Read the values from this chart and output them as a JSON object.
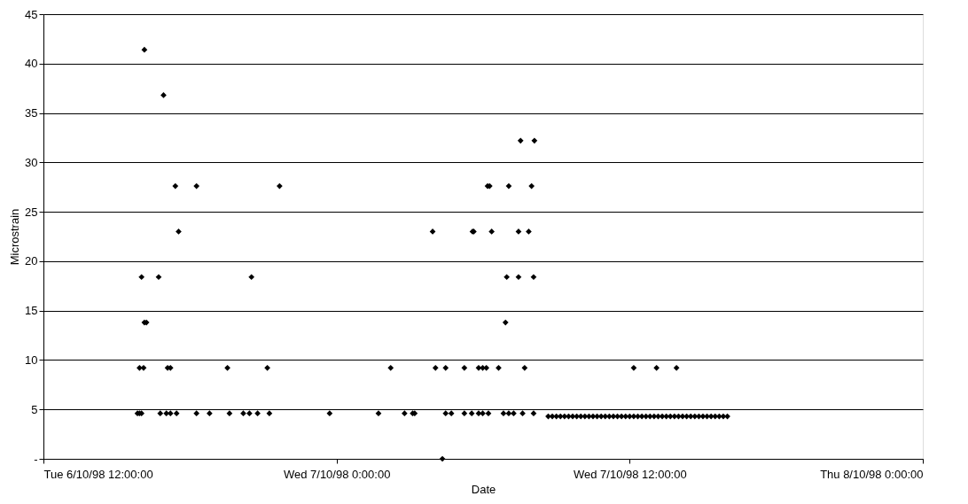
{
  "chart_data": {
    "type": "scatter",
    "xlabel": "Date",
    "ylabel": "Microstrain",
    "x": [
      "1998-10-06T15:51",
      "1998-10-06T15:56",
      "1998-10-06T16:01",
      "1998-10-06T16:47",
      "1998-10-06T17:02",
      "1998-10-06T17:12",
      "1998-10-06T17:27",
      "1998-10-06T18:16",
      "1998-10-06T18:48",
      "1998-10-06T19:37",
      "1998-10-06T20:11",
      "1998-10-06T20:26",
      "1998-10-06T20:46",
      "1998-10-06T21:15",
      "1998-10-06T23:43",
      "1998-10-07T01:43",
      "1998-10-07T02:47",
      "1998-10-07T03:12",
      "1998-10-06T15:56",
      "1998-10-06T16:06",
      "1998-10-06T17:05",
      "1998-10-06T17:12",
      "1998-10-06T19:32",
      "1998-10-06T21:10",
      "1998-10-06T16:08",
      "1998-10-06T16:13",
      "1998-10-06T16:01",
      "1998-10-06T16:43",
      "1998-10-06T20:31",
      "1998-10-06T17:32",
      "1998-10-06T17:24",
      "1998-10-06T18:16",
      "1998-10-06T21:40",
      "1998-10-06T16:55",
      "1998-10-06T16:08",
      "1998-10-07T03:07",
      "1998-10-07T04:28",
      "1998-10-07T04:42",
      "1998-10-07T05:14",
      "1998-10-07T05:32",
      "1998-10-07T05:49",
      "1998-10-07T05:59",
      "1998-10-07T06:13",
      "1998-10-07T06:50",
      "1998-10-07T07:03",
      "1998-10-07T07:15",
      "1998-10-07T07:37",
      "1998-10-07T08:04",
      "1998-10-07T04:20",
      "1998-10-07T02:13",
      "1998-10-07T04:03",
      "1998-10-07T04:28",
      "1998-10-07T05:14",
      "1998-10-07T05:49",
      "1998-10-07T05:59",
      "1998-10-07T06:08",
      "1998-10-07T06:38",
      "1998-10-07T07:42",
      "1998-10-07T06:55",
      "1998-10-07T06:58",
      "1998-10-07T07:27",
      "1998-10-07T08:04",
      "1998-10-07T03:56",
      "1998-10-07T05:34",
      "1998-10-07T05:37",
      "1998-10-07T06:21",
      "1998-10-07T07:27",
      "1998-10-07T07:52",
      "1998-10-07T06:11",
      "1998-10-07T06:16",
      "1998-10-07T07:03",
      "1998-10-07T07:59",
      "1998-10-07T07:32",
      "1998-10-07T08:06",
      "1998-10-07T12:10",
      "1998-10-07T13:06",
      "1998-10-07T13:55",
      "1998-10-07T08:40",
      "1998-10-07T08:50",
      "1998-10-07T09:00",
      "1998-10-07T09:10",
      "1998-10-07T09:20",
      "1998-10-07T09:30",
      "1998-10-07T09:40",
      "1998-10-07T09:50",
      "1998-10-07T10:00",
      "1998-10-07T10:10",
      "1998-10-07T10:20",
      "1998-10-07T10:30",
      "1998-10-07T10:40",
      "1998-10-07T10:50",
      "1998-10-07T11:00",
      "1998-10-07T11:10",
      "1998-10-07T11:20",
      "1998-10-07T11:30",
      "1998-10-07T11:40",
      "1998-10-07T11:50",
      "1998-10-07T12:00",
      "1998-10-07T12:10",
      "1998-10-07T12:20",
      "1998-10-07T12:30",
      "1998-10-07T12:40",
      "1998-10-07T12:50",
      "1998-10-07T13:00",
      "1998-10-07T13:10",
      "1998-10-07T13:20",
      "1998-10-07T13:30",
      "1998-10-07T13:40",
      "1998-10-07T13:50",
      "1998-10-07T14:00",
      "1998-10-07T14:10",
      "1998-10-07T14:20",
      "1998-10-07T14:30",
      "1998-10-07T14:40",
      "1998-10-07T14:50",
      "1998-10-07T15:00",
      "1998-10-07T15:10",
      "1998-10-07T15:20",
      "1998-10-07T15:30",
      "1998-10-07T15:40",
      "1998-10-07T15:50",
      "1998-10-07T16:00"
    ],
    "series": [
      {
        "color": "#000000",
        "values": [
          4.6,
          4.6,
          4.6,
          4.6,
          4.6,
          4.6,
          4.6,
          4.6,
          4.6,
          4.6,
          4.6,
          4.6,
          4.6,
          4.6,
          4.6,
          4.6,
          4.6,
          4.6,
          9.2,
          9.2,
          9.2,
          9.2,
          9.2,
          9.2,
          13.8,
          13.8,
          18.4,
          18.4,
          18.4,
          23.0,
          27.6,
          27.6,
          27.6,
          36.8,
          41.4,
          4.6,
          4.6,
          4.6,
          4.6,
          4.6,
          4.6,
          4.6,
          4.6,
          4.6,
          4.6,
          4.6,
          4.6,
          4.6,
          0,
          9.2,
          9.2,
          9.2,
          9.2,
          9.2,
          9.2,
          9.2,
          9.2,
          9.2,
          13.8,
          18.4,
          18.4,
          18.4,
          23.0,
          23.0,
          23.0,
          23.0,
          23.0,
          23.0,
          27.6,
          27.6,
          27.6,
          27.6,
          32.2,
          32.2,
          9.2,
          9.2,
          9.2,
          4.3,
          4.3,
          4.3,
          4.3,
          4.3,
          4.3,
          4.3,
          4.3,
          4.3,
          4.3,
          4.3,
          4.3,
          4.3,
          4.3,
          4.3,
          4.3,
          4.3,
          4.3,
          4.3,
          4.3,
          4.3,
          4.3,
          4.3,
          4.3,
          4.3,
          4.3,
          4.3,
          4.3,
          4.3,
          4.3,
          4.3,
          4.3,
          4.3,
          4.3,
          4.3,
          4.3,
          4.3,
          4.3,
          4.3,
          4.3,
          4.3,
          4.3,
          4.3,
          4.3,
          4.3
        ]
      }
    ],
    "xlim": [
      "1998-10-06T12:00",
      "1998-10-08T00:00"
    ],
    "xticks": [
      {
        "value": "1998-10-06T12:00",
        "label": "Tue 6/10/98 12:00:00"
      },
      {
        "value": "1998-10-07T00:00",
        "label": "Wed 7/10/98 0:00:00"
      },
      {
        "value": "1998-10-07T12:00",
        "label": "Wed 7/10/98 12:00:00"
      },
      {
        "value": "1998-10-08T00:00",
        "label": "Thu 8/10/98 0:00:00"
      }
    ],
    "ylim": [
      0,
      45
    ],
    "yticks": [
      {
        "value": 0,
        "label": "-"
      },
      5,
      10,
      15,
      20,
      25,
      30,
      35,
      40,
      45
    ],
    "grid": "y",
    "marker": "diamond"
  }
}
